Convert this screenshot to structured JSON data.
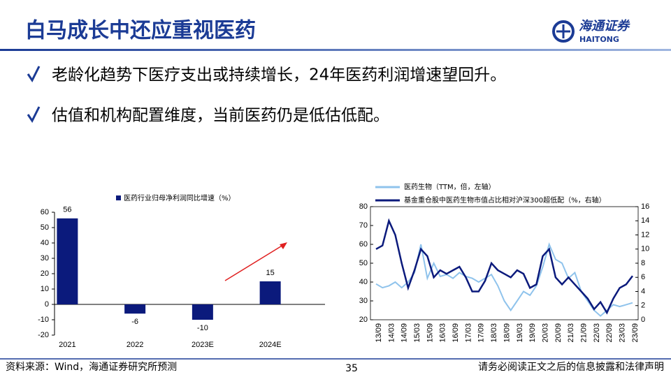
{
  "header": {
    "title": "白马成长中还应重视医药",
    "logo_cn": "海通证券",
    "logo_en": "HAITONG"
  },
  "bullets": [
    "老龄化趋势下医疗支出或持续增长，24年医药利润增速望回升。",
    "估值和机构配置维度，当前医药仍是低估低配。"
  ],
  "footer": {
    "source": "资料来源：Wind，海通证券研究所预测",
    "page": "35",
    "disclaimer": "请务必阅读正文之后的信息披露和法律声明"
  },
  "chart_data": [
    {
      "type": "bar",
      "categories": [
        "2021",
        "2022",
        "2023E",
        "2024E"
      ],
      "series": [
        {
          "name": "医药行业归母净利润同比增速（%）",
          "color": "#0b1a7c",
          "values": [
            56,
            -6,
            -10,
            15
          ]
        }
      ],
      "ylim": [
        -20,
        60
      ],
      "yticks": [
        -20,
        -10,
        0,
        10,
        20,
        30,
        40,
        50,
        60
      ]
    },
    {
      "type": "line",
      "categories": [
        "13/09",
        null,
        "14/03",
        null,
        "14/09",
        null,
        "15/03",
        null,
        "15/09",
        null,
        "16/03",
        null,
        "16/09",
        null,
        "17/03",
        null,
        "17/09",
        null,
        "18/03",
        null,
        "18/09",
        null,
        "19/03",
        null,
        "19/09",
        null,
        "20/03",
        null,
        "20/09",
        null,
        "21/03",
        null,
        "21/09",
        null,
        "22/03",
        null,
        "22/09",
        null,
        "23/03",
        null,
        "23/09"
      ],
      "series": [
        {
          "name": "医药生物（TTM，倍，左轴）",
          "color": "#8fc3ec",
          "values": [
            39,
            37,
            38,
            40,
            37,
            40,
            45,
            60,
            42,
            50,
            43,
            44,
            42,
            45,
            43,
            42,
            40,
            42,
            44,
            38,
            30,
            25,
            30,
            35,
            33,
            38,
            48,
            60,
            52,
            50,
            42,
            45,
            35,
            30,
            25,
            22,
            25,
            28,
            27,
            28,
            29
          ]
        },
        {
          "name": "基金重仓股中医药生物市值占比相对沪深300超低配（%，右轴）",
          "color": "#0b1a7c",
          "axis": "y2",
          "values": [
            10,
            10.5,
            14,
            12,
            8,
            4.5,
            7,
            10,
            9,
            6,
            7,
            6.5,
            7,
            7.5,
            6,
            4,
            4,
            5.5,
            8,
            7,
            6.5,
            6,
            7,
            6.5,
            4.5,
            5,
            9,
            10,
            6,
            5,
            6,
            5,
            4,
            3,
            1.5,
            2.5,
            1,
            3,
            4.5,
            5,
            6.2
          ]
        }
      ],
      "ylim": [
        20,
        80
      ],
      "yticks": [
        20,
        30,
        40,
        50,
        60,
        70,
        80
      ],
      "y2lim": [
        0,
        16
      ],
      "y2ticks": [
        0,
        2,
        4,
        6,
        8,
        10,
        12,
        14,
        16
      ]
    }
  ]
}
